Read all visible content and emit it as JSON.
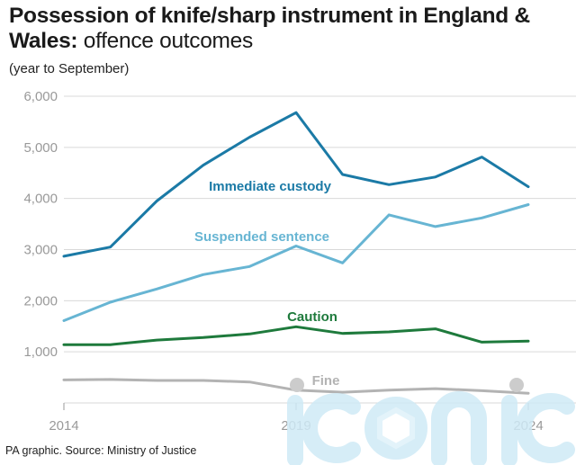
{
  "title": {
    "bold": "Possession of knife/sharp instrument in England & Wales:",
    "regular": "offence outcomes"
  },
  "subtitle": "(year to September)",
  "source": "PA graphic. Source: Ministry of Justice",
  "watermark_text": "iconic",
  "colors": {
    "immediate_custody": "#1b7aa6",
    "suspended_sentence": "#67b5d3",
    "caution": "#1e7a3c",
    "fine": "#b3b3b3",
    "grid": "#d9d9d9",
    "tick": "#999999"
  },
  "chart_data": {
    "type": "line",
    "title": "Possession of knife/sharp instrument in England & Wales: offence outcomes",
    "subtitle": "(year to September)",
    "x": [
      2014,
      2015,
      2016,
      2017,
      2018,
      2019,
      2020,
      2021,
      2022,
      2023,
      2024
    ],
    "x_tick_labels": [
      "2014",
      "2019",
      "2024"
    ],
    "y_tick_labels": [
      "6,000",
      "5,000",
      "4,000",
      "3,000",
      "2,000",
      "1,000"
    ],
    "ylim": [
      0,
      6000
    ],
    "grid": true,
    "series": [
      {
        "name": "Immediate custody",
        "key": "immediate_custody",
        "values": [
          2870,
          3050,
          3950,
          4650,
          5200,
          5680,
          4470,
          4270,
          4420,
          4810,
          4230
        ]
      },
      {
        "name": "Suspended sentence",
        "key": "suspended_sentence",
        "values": [
          1610,
          1970,
          2230,
          2510,
          2670,
          3070,
          2740,
          3680,
          3450,
          3620,
          3880
        ]
      },
      {
        "name": "Caution",
        "key": "caution",
        "values": [
          1140,
          1140,
          1230,
          1280,
          1350,
          1490,
          1360,
          1390,
          1450,
          1190,
          1210
        ]
      },
      {
        "name": "Fine",
        "key": "fine",
        "values": [
          450,
          460,
          440,
          440,
          410,
          250,
          210,
          250,
          280,
          240,
          190
        ]
      }
    ]
  }
}
